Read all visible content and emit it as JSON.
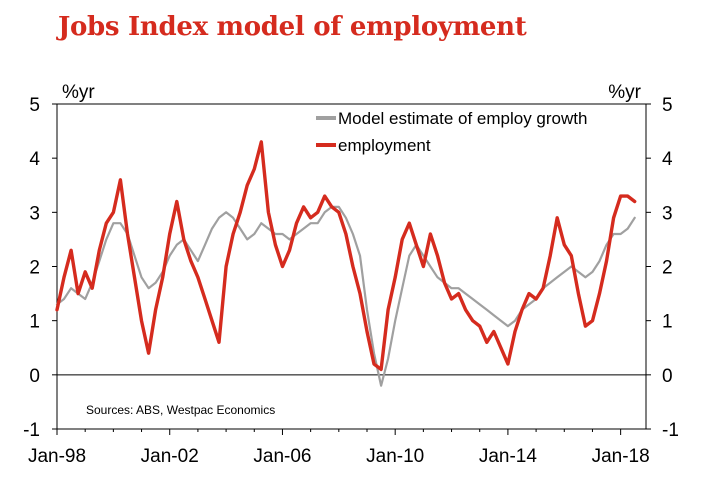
{
  "chart_data": {
    "type": "line",
    "title": "Jobs Index model of employment",
    "y_unit_left": "%yr",
    "y_unit_right": "%yr",
    "ylim": [
      -1,
      5
    ],
    "y_ticks": [
      -1,
      0,
      1,
      2,
      3,
      4,
      5
    ],
    "y_tick_labels": [
      "-1",
      "0",
      "1",
      "2",
      "3",
      "4",
      "5"
    ],
    "x_range": [
      1998.0,
      2018.9
    ],
    "x_ticks": [
      1998,
      2002,
      2006,
      2010,
      2014,
      2018
    ],
    "x_tick_labels": [
      "Jan-98",
      "Jan-02",
      "Jan-06",
      "Jan-10",
      "Jan-14",
      "Jan-18"
    ],
    "source": "Sources: ABS, Westpac Economics",
    "legend_position": "top-right",
    "series": [
      {
        "name": "Model estimate of employ growth",
        "color": "#a0a0a0",
        "x": [
          1998.0,
          1998.25,
          1998.5,
          1998.75,
          1999.0,
          1999.25,
          1999.5,
          1999.75,
          2000.0,
          2000.25,
          2000.5,
          2000.75,
          2001.0,
          2001.25,
          2001.5,
          2001.75,
          2002.0,
          2002.25,
          2002.5,
          2002.75,
          2003.0,
          2003.25,
          2003.5,
          2003.75,
          2004.0,
          2004.25,
          2004.5,
          2004.75,
          2005.0,
          2005.25,
          2005.5,
          2005.75,
          2006.0,
          2006.25,
          2006.5,
          2006.75,
          2007.0,
          2007.25,
          2007.5,
          2007.75,
          2008.0,
          2008.25,
          2008.5,
          2008.75,
          2009.0,
          2009.25,
          2009.5,
          2009.75,
          2010.0,
          2010.25,
          2010.5,
          2010.75,
          2011.0,
          2011.25,
          2011.5,
          2011.75,
          2012.0,
          2012.25,
          2012.5,
          2012.75,
          2013.0,
          2013.25,
          2013.5,
          2013.75,
          2014.0,
          2014.25,
          2014.5,
          2014.75,
          2015.0,
          2015.25,
          2015.5,
          2015.75,
          2016.0,
          2016.25,
          2016.5,
          2016.75,
          2017.0,
          2017.25,
          2017.5,
          2017.75,
          2018.0,
          2018.25,
          2018.5
        ],
        "values": [
          1.3,
          1.4,
          1.6,
          1.5,
          1.4,
          1.7,
          2.1,
          2.5,
          2.8,
          2.8,
          2.6,
          2.2,
          1.8,
          1.6,
          1.7,
          1.9,
          2.2,
          2.4,
          2.5,
          2.3,
          2.1,
          2.4,
          2.7,
          2.9,
          3.0,
          2.9,
          2.7,
          2.5,
          2.6,
          2.8,
          2.7,
          2.6,
          2.6,
          2.5,
          2.6,
          2.7,
          2.8,
          2.8,
          3.0,
          3.1,
          3.1,
          2.9,
          2.6,
          2.2,
          1.2,
          0.4,
          -0.2,
          0.3,
          1.0,
          1.6,
          2.2,
          2.4,
          2.2,
          2.0,
          1.8,
          1.7,
          1.6,
          1.6,
          1.5,
          1.4,
          1.3,
          1.2,
          1.1,
          1.0,
          0.9,
          1.0,
          1.2,
          1.3,
          1.4,
          1.6,
          1.7,
          1.8,
          1.9,
          2.0,
          1.9,
          1.8,
          1.9,
          2.1,
          2.4,
          2.6,
          2.6,
          2.7,
          2.9
        ]
      },
      {
        "name": "employment",
        "color": "#d52b1e",
        "x": [
          1998.0,
          1998.25,
          1998.5,
          1998.75,
          1999.0,
          1999.25,
          1999.5,
          1999.75,
          2000.0,
          2000.25,
          2000.5,
          2000.75,
          2001.0,
          2001.25,
          2001.5,
          2001.75,
          2002.0,
          2002.25,
          2002.5,
          2002.75,
          2003.0,
          2003.25,
          2003.5,
          2003.75,
          2004.0,
          2004.25,
          2004.5,
          2004.75,
          2005.0,
          2005.25,
          2005.5,
          2005.75,
          2006.0,
          2006.25,
          2006.5,
          2006.75,
          2007.0,
          2007.25,
          2007.5,
          2007.75,
          2008.0,
          2008.25,
          2008.5,
          2008.75,
          2009.0,
          2009.25,
          2009.5,
          2009.75,
          2010.0,
          2010.25,
          2010.5,
          2010.75,
          2011.0,
          2011.25,
          2011.5,
          2011.75,
          2012.0,
          2012.25,
          2012.5,
          2012.75,
          2013.0,
          2013.25,
          2013.5,
          2013.75,
          2014.0,
          2014.25,
          2014.5,
          2014.75,
          2015.0,
          2015.25,
          2015.5,
          2015.75,
          2016.0,
          2016.25,
          2016.5,
          2016.75,
          2017.0,
          2017.25,
          2017.5,
          2017.75,
          2018.0,
          2018.25,
          2018.5
        ],
        "values": [
          1.2,
          1.8,
          2.3,
          1.5,
          1.9,
          1.6,
          2.3,
          2.8,
          3.0,
          3.6,
          2.6,
          1.8,
          1.0,
          0.4,
          1.2,
          1.8,
          2.6,
          3.2,
          2.5,
          2.1,
          1.8,
          1.4,
          1.0,
          0.6,
          2.0,
          2.6,
          3.0,
          3.5,
          3.8,
          4.3,
          3.0,
          2.4,
          2.0,
          2.3,
          2.8,
          3.1,
          2.9,
          3.0,
          3.3,
          3.1,
          3.0,
          2.6,
          2.0,
          1.5,
          0.8,
          0.2,
          0.1,
          1.2,
          1.8,
          2.5,
          2.8,
          2.4,
          2.0,
          2.6,
          2.2,
          1.7,
          1.4,
          1.5,
          1.2,
          1.0,
          0.9,
          0.6,
          0.8,
          0.5,
          0.2,
          0.8,
          1.2,
          1.5,
          1.4,
          1.6,
          2.2,
          2.9,
          2.4,
          2.2,
          1.5,
          0.9,
          1.0,
          1.5,
          2.1,
          2.9,
          3.3,
          3.3,
          3.2
        ]
      }
    ]
  }
}
